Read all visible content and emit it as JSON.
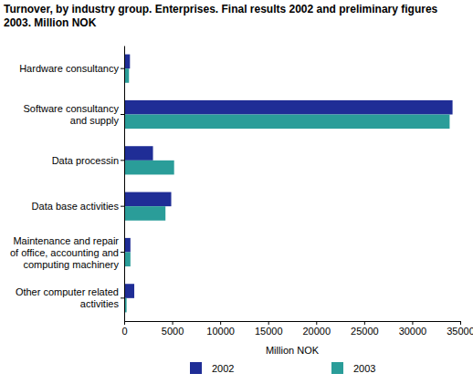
{
  "chart_data": {
    "type": "bar",
    "orientation": "horizontal",
    "title": "Turnover, by industry group. Enterprises. Final results 2002 and preliminary figures 2003. Million NOK",
    "x_label": "Million NOK",
    "categories": [
      "Hardware consultancy",
      "Software consultancy and supply",
      "Data processin",
      "Data base activities",
      "Maintenance and repair of office, accounting and computing machinery",
      "Other computer related activities"
    ],
    "series": [
      {
        "name": "2002",
        "color": "#1f2d96",
        "values": [
          600,
          34200,
          3000,
          4900,
          650,
          1050
        ]
      },
      {
        "name": "2003",
        "color": "#2a9d99",
        "values": [
          500,
          33900,
          5200,
          4300,
          650,
          250
        ]
      }
    ],
    "xlim": [
      0,
      35000
    ],
    "xticks": [
      0,
      5000,
      10000,
      15000,
      20000,
      25000,
      30000,
      35000
    ],
    "grid": false,
    "legend": "bottom"
  }
}
